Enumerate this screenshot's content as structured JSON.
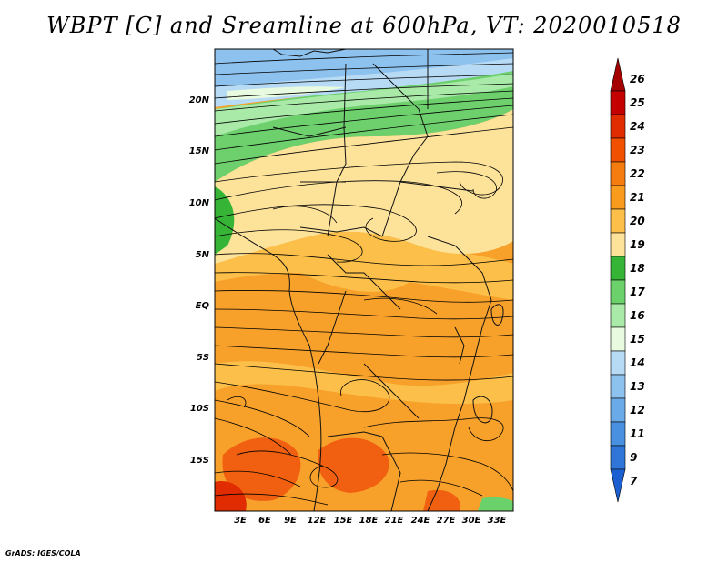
{
  "title": "WBPT [C] and Sreamline at 600hPa, VT: 2020010518",
  "credit": "GrADS: IGES/COLA",
  "lat_labels": [
    "20N",
    "15N",
    "10N",
    "5N",
    "EQ",
    "5S",
    "10S",
    "15S"
  ],
  "lon_labels": [
    "3E",
    "6E",
    "9E",
    "12E",
    "15E",
    "18E",
    "21E",
    "24E",
    "27E",
    "30E",
    "33E"
  ],
  "colorbar": {
    "labels": [
      "26",
      "25",
      "24",
      "23",
      "22",
      "21",
      "20",
      "19",
      "18",
      "17",
      "16",
      "15",
      "14",
      "13",
      "12",
      "11",
      "9",
      "7"
    ],
    "colors": [
      "#a50000",
      "#c40000",
      "#e12b00",
      "#f05000",
      "#f57d10",
      "#f99c1e",
      "#fbbf4a",
      "#fde29a",
      "#36b436",
      "#6bd26b",
      "#a9eaa9",
      "#e8fbe0",
      "#b7dbf5",
      "#8ec2ee",
      "#6aaae8",
      "#4a90e0",
      "#2f76d8",
      "#1c5fd0"
    ]
  },
  "colors": {
    "band_blue": "#9cc8f2",
    "band_green": "#6dd06d",
    "yellow": "#fde29a",
    "orange": "#f7a12b",
    "red": "#f06010"
  }
}
